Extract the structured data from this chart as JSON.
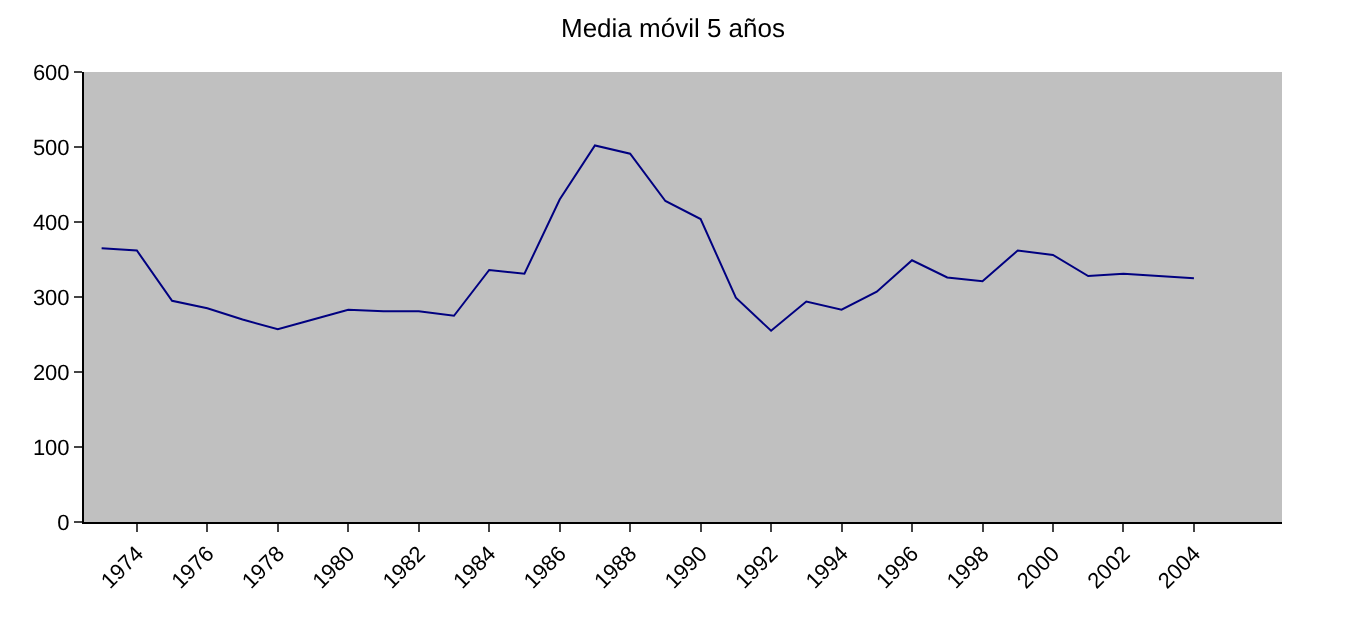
{
  "chart_data": {
    "type": "line",
    "title": "Media móvil 5 años",
    "categories": [
      null,
      "1974",
      null,
      "1976",
      null,
      "1978",
      null,
      "1980",
      null,
      "1982",
      null,
      "1984",
      null,
      "1986",
      null,
      "1988",
      null,
      "1990",
      null,
      "1992",
      null,
      "1994",
      null,
      "1996",
      null,
      "1998",
      null,
      "2000",
      null,
      "2002",
      null,
      "2004",
      null,
      null
    ],
    "series": [
      {
        "color": "#000080",
        "values": [
          365,
          362,
          295,
          285,
          270,
          257,
          270,
          283,
          281,
          281,
          275,
          336,
          331,
          430,
          502,
          491,
          428,
          404,
          299,
          255,
          294,
          283,
          307,
          349,
          326,
          321,
          362,
          356,
          328,
          331,
          328,
          325,
          null,
          null
        ]
      }
    ],
    "ylim": [
      0,
      600
    ],
    "yticks": [
      0,
      100,
      200,
      300,
      400,
      500,
      600
    ]
  }
}
